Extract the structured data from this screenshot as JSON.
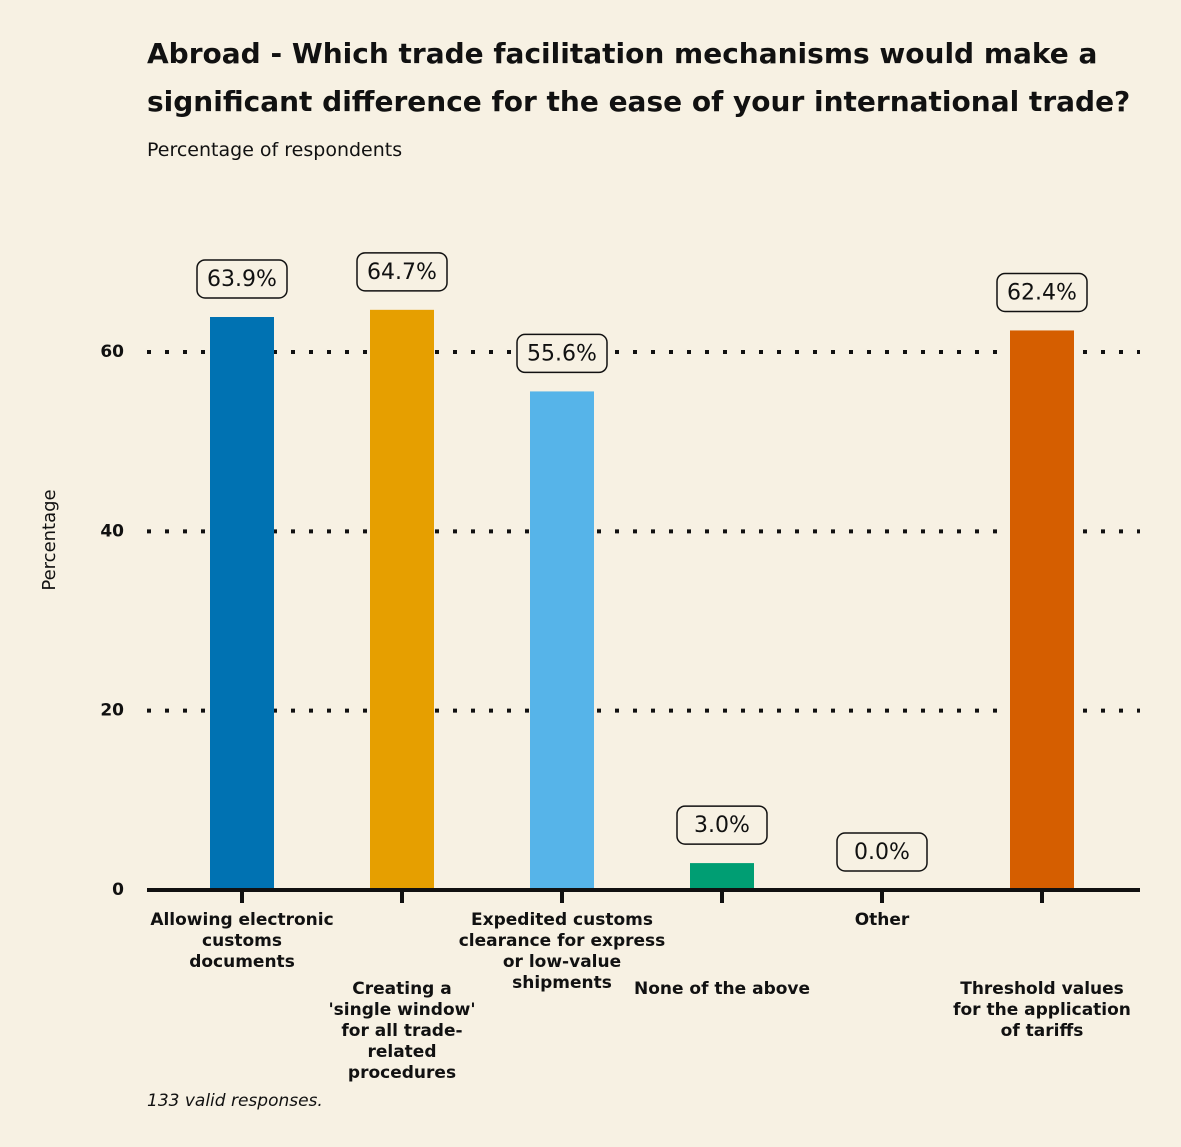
{
  "chart_data": {
    "type": "bar",
    "title": "Abroad - Which trade facilitation mechanisms would make a significant difference for the ease of your international trade?",
    "subtitle": "Percentage of respondents",
    "y_label": "Percentage",
    "note": "133 valid responses.",
    "categories": [
      "Allowing electronic customs documents",
      "Creating a 'single window' for all trade-related procedures",
      "Expedited customs clearance for express or low-value shipments",
      "None of the above",
      "Other",
      "Threshold values for the application of tariffs"
    ],
    "values": [
      63.9,
      64.7,
      55.6,
      3.0,
      0.0,
      62.4
    ],
    "value_labels": [
      "63.9%",
      "64.7%",
      "55.6%",
      "3.0%",
      "0.0%",
      "62.4%"
    ],
    "colors": [
      "#0072b2",
      "#e69f00",
      "#56b4e9",
      "#009e73",
      "#f0e442",
      "#d55e00"
    ],
    "ylim": [
      0,
      70
    ],
    "yticks": [
      0,
      20,
      40,
      60
    ],
    "grid": true
  }
}
